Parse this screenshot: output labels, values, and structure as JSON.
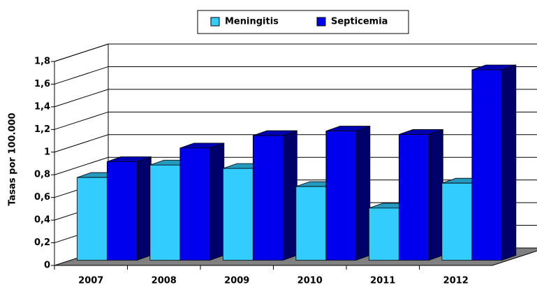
{
  "chart_data": {
    "type": "bar3d",
    "y_axis_label": "Tasas por 100.000",
    "categories": [
      "2007",
      "2008",
      "2009",
      "2010",
      "2011",
      "2012"
    ],
    "series": [
      {
        "name": "Meningitis",
        "color": "#33ccff",
        "values": [
          0.73,
          0.84,
          0.81,
          0.65,
          0.46,
          0.68
        ]
      },
      {
        "name": "Septicemia",
        "color": "#0000ee",
        "values": [
          0.87,
          0.99,
          1.1,
          1.14,
          1.11,
          1.68
        ]
      }
    ],
    "ylim": [
      0,
      1.8
    ],
    "yticks": [
      0,
      {
        "value": 0.2,
        "label": "0,2"
      },
      {
        "value": 0.4,
        "label": "0,4"
      },
      {
        "value": 0.6,
        "label": "0,6"
      },
      {
        "value": 0.8,
        "label": "0,8"
      },
      1,
      {
        "value": 1.2,
        "label": "1,2"
      },
      {
        "value": 1.4,
        "label": "1,4"
      },
      {
        "value": 1.6,
        "label": "1,6"
      },
      {
        "value": 1.8,
        "label": "1,8"
      }
    ],
    "grid": true
  }
}
